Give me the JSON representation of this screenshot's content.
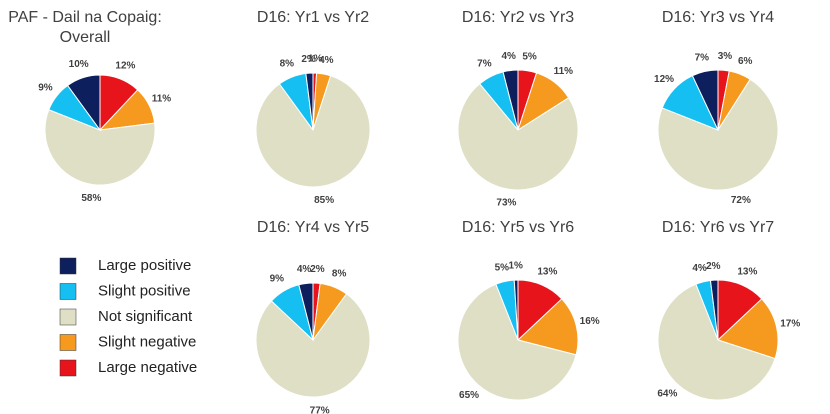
{
  "legend": {
    "categories": [
      "Large negative",
      "Slight negative",
      "Not significant",
      "Slight positive",
      "Large positive"
    ],
    "colors": [
      "#e8141c",
      "#f59a1e",
      "#dedfc4",
      "#16bff2",
      "#0d1f5c"
    ]
  },
  "chart_data": [
    {
      "type": "pie",
      "title": "PAF - Dail na Copaig: Overall",
      "values": [
        12,
        11,
        58,
        9,
        10
      ],
      "value_labels": [
        "12%",
        "11%",
        "58%",
        "9%",
        "10%"
      ]
    },
    {
      "type": "pie",
      "title": "D16: Yr1 vs Yr2",
      "values": [
        1,
        4,
        85,
        8,
        2
      ],
      "value_labels": [
        "1%",
        "4%",
        "85%",
        "8%",
        "2%"
      ]
    },
    {
      "type": "pie",
      "title": "D16: Yr2 vs Yr3",
      "values": [
        5,
        11,
        73,
        7,
        4
      ],
      "value_labels": [
        "5%",
        "11%",
        "73%",
        "7%",
        "4%"
      ]
    },
    {
      "type": "pie",
      "title": "D16: Yr3 vs Yr4",
      "values": [
        3,
        6,
        72,
        12,
        7
      ],
      "value_labels": [
        "3%",
        "6%",
        "72%",
        "12%",
        "7%"
      ]
    },
    {
      "type": "pie",
      "title": "D16: Yr4 vs Yr5",
      "values": [
        2,
        8,
        77,
        9,
        4
      ],
      "value_labels": [
        "2%",
        "8%",
        "77%",
        "9%",
        "4%"
      ]
    },
    {
      "type": "pie",
      "title": "D16: Yr5 vs Yr6",
      "values": [
        13,
        16,
        65,
        5,
        1
      ],
      "value_labels": [
        "13%",
        "16%",
        "65%",
        "5%",
        "1%"
      ]
    },
    {
      "type": "pie",
      "title": "D16: Yr6 vs Yr7",
      "values": [
        13,
        17,
        64,
        4,
        2
      ],
      "value_labels": [
        "13%",
        "17%",
        "64%",
        "4%",
        "2%"
      ]
    }
  ]
}
